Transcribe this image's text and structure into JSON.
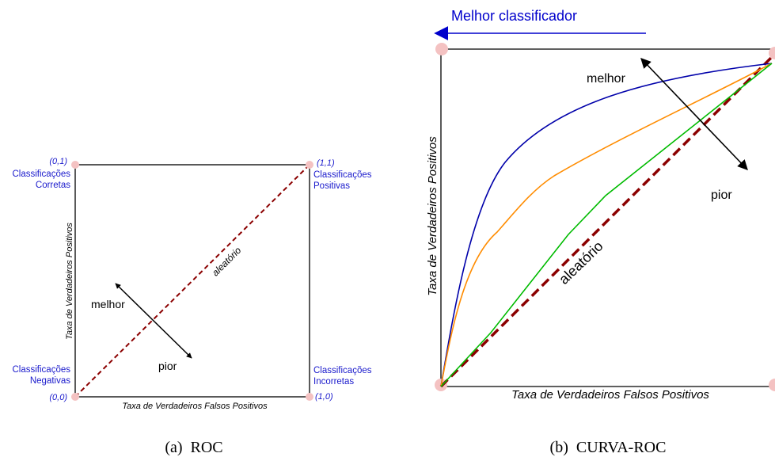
{
  "colors": {
    "label_blue": "#1a1acc",
    "random_line": "#8b0000",
    "corner_dot": "#f4c2c2",
    "curve_blue": "#0000aa",
    "curve_orange": "#ff8c00",
    "curve_green": "#00bb00"
  },
  "panel_a": {
    "caption": "(a)  ROC",
    "x_label": "Taxa de Verdadeiros Falsos Positivos",
    "y_label": "Taxa de Verdadeiros Positivos",
    "random_label": "aleatório",
    "better_label": "melhor",
    "worse_label": "pior",
    "corners": {
      "top_left": {
        "coord": "(0,1)",
        "line1": "Classificações",
        "line2": "Corretas"
      },
      "top_right": {
        "coord": "(1,1)",
        "line1": "Classificações",
        "line2": "Positivas"
      },
      "bottom_left": {
        "coord": "(0,0)",
        "line1": "Classificações",
        "line2": "Negativas"
      },
      "bottom_right": {
        "coord": "(1,0)",
        "line1": "Classificações",
        "line2": "Incorretas"
      }
    }
  },
  "panel_b": {
    "caption": "(b)  CURVA-ROC",
    "best_classifier_label": "Melhor classificador",
    "x_label": "Taxa de Verdadeiros Falsos Positivos",
    "y_label": "Taxa de Verdadeiros Positivos",
    "random_label": "aleatório",
    "better_label": "melhor",
    "worse_label": "pior"
  }
}
